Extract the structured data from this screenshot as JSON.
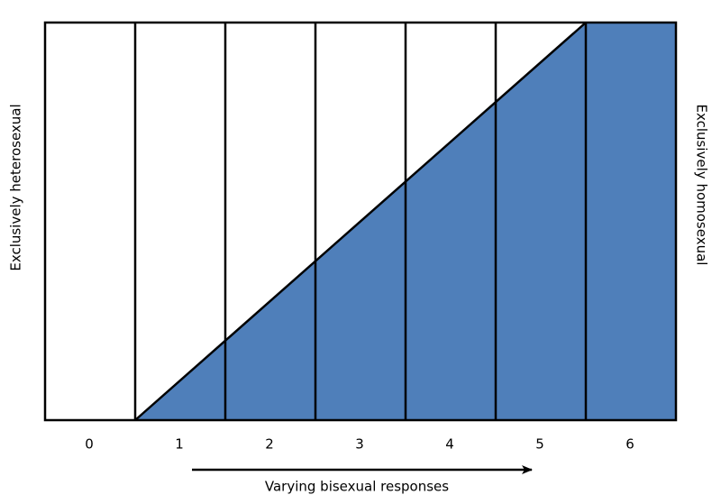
{
  "left_label": "Exclusively heterosexual",
  "right_label": "Exclusively homosexual",
  "columns": [
    "0",
    "1",
    "2",
    "3",
    "4",
    "5",
    "6"
  ],
  "axis_label": "Varying bisexual responses"
}
